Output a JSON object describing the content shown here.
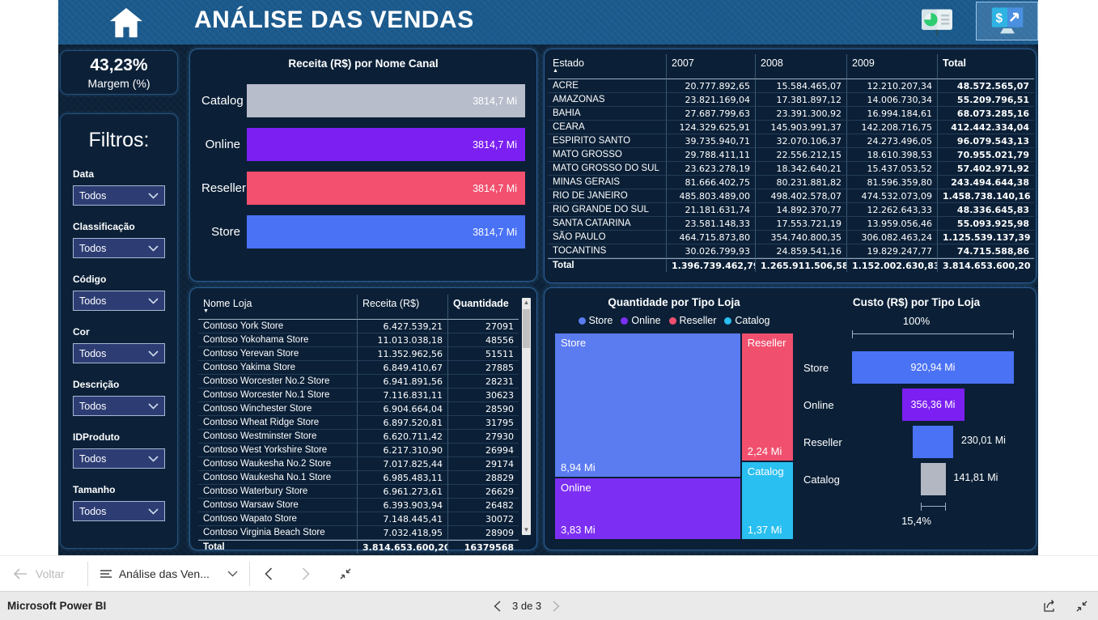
{
  "header": {
    "title": "ANÁLISE DAS VENDAS",
    "icons": [
      "home-icon",
      "presentation-chart-icon",
      "sales-monitor-icon"
    ]
  },
  "kpi": {
    "value": "43,23%",
    "label": "Margem (%)"
  },
  "filters": {
    "title": "Filtros:",
    "fields": [
      {
        "label": "Data",
        "value": "Todos"
      },
      {
        "label": "Classificação",
        "value": "Todos"
      },
      {
        "label": "Código",
        "value": "Todos"
      },
      {
        "label": "Cor",
        "value": "Todos"
      },
      {
        "label": "Descrição",
        "value": "Todos"
      },
      {
        "label": "IDProduto",
        "value": "Todos"
      },
      {
        "label": "Tamanho",
        "value": "Todos"
      }
    ]
  },
  "bar_chart": {
    "type": "bar",
    "title": "Receita (R$) por Nome Canal",
    "categories": [
      "Catalog",
      "Online",
      "Reseller",
      "Store"
    ],
    "value_labels": [
      "3814,7 Mi",
      "3814,7 Mi",
      "3814,7 Mi",
      "3814,7 Mi"
    ],
    "values_mi": [
      3814.7,
      3814.7,
      3814.7,
      3814.7
    ],
    "colors": [
      "#b8bdcb",
      "#7b1ff2",
      "#f2506e",
      "#4a72f5"
    ]
  },
  "estado_table": {
    "columns": [
      "Estado",
      "2007",
      "2008",
      "2009",
      "Total"
    ],
    "sort": {
      "column": "Estado",
      "direction": "asc"
    },
    "rows": [
      [
        "ACRE",
        "20.777.892,65",
        "15.584.465,07",
        "12.210.207,34",
        "48.572.565,07"
      ],
      [
        "AMAZONAS",
        "23.821.169,04",
        "17.381.897,12",
        "14.006.730,34",
        "55.209.796,51"
      ],
      [
        "BAHIA",
        "27.687.799,63",
        "23.391.300,92",
        "16.994.184,61",
        "68.073.285,16"
      ],
      [
        "CEARA",
        "124.329.625,91",
        "145.903.991,37",
        "142.208.716,75",
        "412.442.334,04"
      ],
      [
        "ESPIRITO SANTO",
        "39.735.940,71",
        "32.070.106,37",
        "24.273.496,05",
        "96.079.543,13"
      ],
      [
        "MATO GROSSO",
        "29.788.411,11",
        "22.556.212,15",
        "18.610.398,53",
        "70.955.021,79"
      ],
      [
        "MATO GROSSO DO SUL",
        "23.623.278,19",
        "18.342.640,21",
        "15.437.053,52",
        "57.402.971,92"
      ],
      [
        "MINAS GERAIS",
        "81.666.402,75",
        "80.231.881,82",
        "81.596.359,80",
        "243.494.644,38"
      ],
      [
        "RIO DE JANEIRO",
        "485.803.489,00",
        "498.402.578,07",
        "474.532.073,09",
        "1.458.738.140,16"
      ],
      [
        "RIO GRANDE DO SUL",
        "21.181.631,74",
        "14.892.370,77",
        "12.262.643,33",
        "48.336.645,83"
      ],
      [
        "SANTA CATARINA",
        "23.581.148,33",
        "17.553.721,19",
        "13.959.056,46",
        "55.093.925,98"
      ],
      [
        "SÃO PAULO",
        "464.715.873,80",
        "354.740.800,35",
        "306.082.463,24",
        "1.125.539.137,39"
      ],
      [
        "TOCANTINS",
        "30.026.799,93",
        "24.859.541,16",
        "19.829.247,77",
        "74.715.588,86"
      ]
    ],
    "total_row": [
      "Total",
      "1.396.739.462,79",
      "1.265.911.506,58",
      "1.152.002.630,83",
      "3.814.653.600,20"
    ]
  },
  "stores_table": {
    "columns": [
      "Nome Loja",
      "Receita (R$)",
      "Quantidade"
    ],
    "sort": {
      "column": "Nome Loja",
      "direction": "desc"
    },
    "rows": [
      [
        "Contoso York Store",
        "6.427.539,21",
        "27091"
      ],
      [
        "Contoso Yokohama Store",
        "11.013.038,18",
        "48556"
      ],
      [
        "Contoso Yerevan Store",
        "11.352.962,56",
        "51511"
      ],
      [
        "Contoso Yakima Store",
        "6.849.410,67",
        "27885"
      ],
      [
        "Contoso Worcester No.2 Store",
        "6.941.891,56",
        "28231"
      ],
      [
        "Contoso Worcester No.1 Store",
        "7.116.831,11",
        "30623"
      ],
      [
        "Contoso Winchester Store",
        "6.904.664,04",
        "28590"
      ],
      [
        "Contoso Wheat Ridge Store",
        "6.897.520,81",
        "31795"
      ],
      [
        "Contoso Westminster Store",
        "6.620.711,42",
        "27930"
      ],
      [
        "Contoso West Yorkshire Store",
        "6.217.310,90",
        "26994"
      ],
      [
        "Contoso Waukesha No.2 Store",
        "7.017.825,44",
        "29174"
      ],
      [
        "Contoso Waukesha No.1 Store",
        "6.985.483,11",
        "28829"
      ],
      [
        "Contoso Waterbury Store",
        "6.961.273,61",
        "26629"
      ],
      [
        "Contoso Warsaw Store",
        "6.393.903,94",
        "26482"
      ],
      [
        "Contoso Wapato Store",
        "7.148.445,41",
        "30072"
      ],
      [
        "Contoso Virginia Beach Store",
        "7.032.418,95",
        "28909"
      ]
    ],
    "total_row": [
      "Total",
      "3.814.653.600,20",
      "16379568"
    ]
  },
  "treemap": {
    "type": "treemap",
    "title": "Quantidade por Tipo Loja",
    "legend": [
      {
        "label": "Store",
        "color": "#5b7bf0"
      },
      {
        "label": "Online",
        "color": "#7c2ff2"
      },
      {
        "label": "Reseller",
        "color": "#f0506e"
      },
      {
        "label": "Catalog",
        "color": "#29bff0"
      }
    ],
    "blocks": [
      {
        "name": "Store",
        "value_label": "8,94 Mi",
        "value_mi": 8.94,
        "color": "#5b7bf0"
      },
      {
        "name": "Online",
        "value_label": "3,83 Mi",
        "value_mi": 3.83,
        "color": "#7c2ff2"
      },
      {
        "name": "Reseller",
        "value_label": "2,24 Mi",
        "value_mi": 2.24,
        "color": "#f0506e"
      },
      {
        "name": "Catalog",
        "value_label": "1,37 Mi",
        "value_mi": 1.37,
        "color": "#29bff0"
      }
    ]
  },
  "funnel": {
    "type": "funnel",
    "title": "Custo (R$) por Tipo Loja",
    "top_label": "100%",
    "bottom_label": "15,4%",
    "rows": [
      {
        "name": "Store",
        "value_label": "920,94 Mi",
        "value_mi": 920.94,
        "color": "#4a72f5"
      },
      {
        "name": "Online",
        "value_label": "356,36 Mi",
        "value_mi": 356.36,
        "color": "#7b1ff2"
      },
      {
        "name": "Reseller",
        "value_label": "230,01 Mi",
        "value_mi": 230.01,
        "color": "#4a72f5"
      },
      {
        "name": "Catalog",
        "value_label": "141,81 Mi",
        "value_mi": 141.81,
        "color": "#b3b7c2"
      }
    ]
  },
  "toolbar": {
    "back_label": "Voltar",
    "page_dropdown_label": "Análise das Ven..."
  },
  "statusbar": {
    "brand": "Microsoft Power BI",
    "page_indicator": "3 de 3"
  }
}
